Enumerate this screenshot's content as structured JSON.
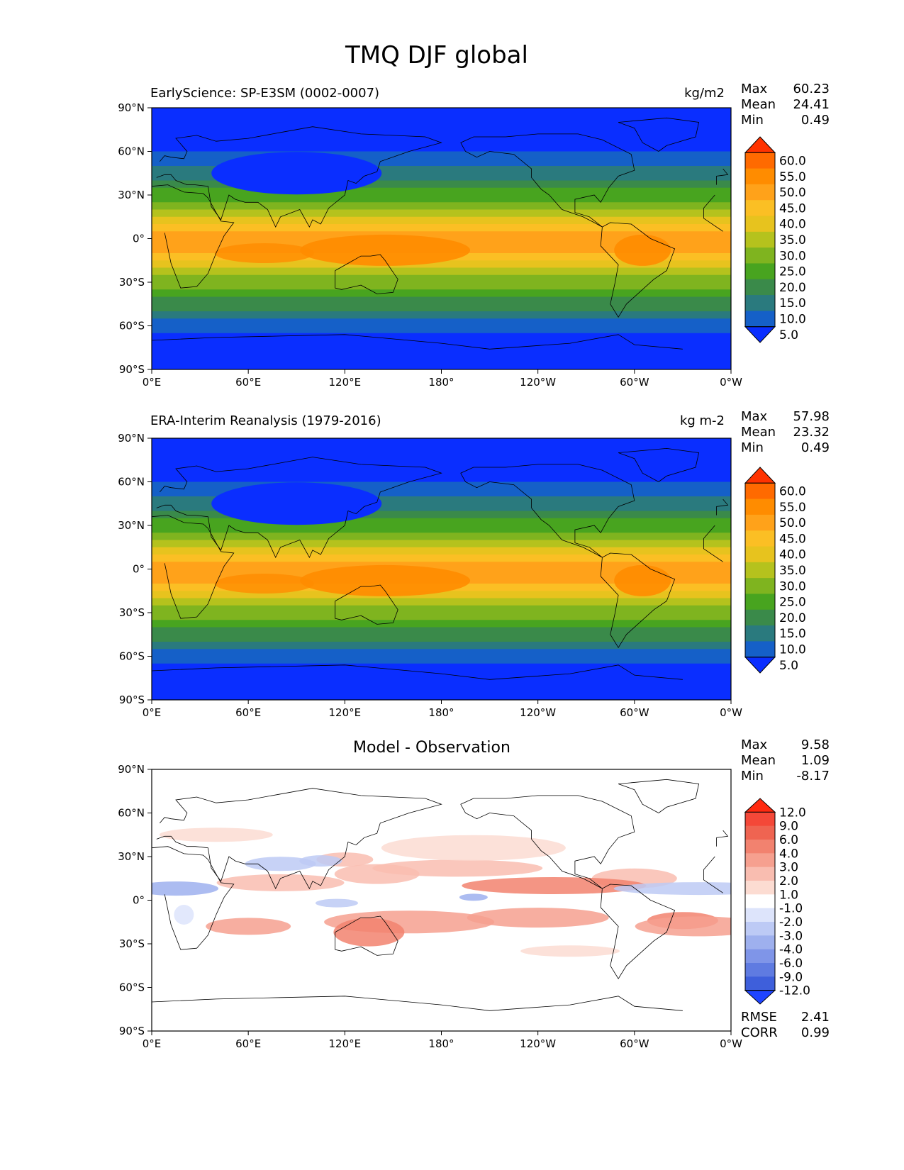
{
  "figure": {
    "title": "TMQ DJF global"
  },
  "axes": {
    "lat_ticks": [
      "90°N",
      "60°N",
      "30°N",
      "0°",
      "30°S",
      "60°S",
      "90°S"
    ],
    "lon_ticks": [
      "0°E",
      "60°E",
      "120°E",
      "180°",
      "120°W",
      "60°W",
      "0°W"
    ]
  },
  "panels": [
    {
      "left_title": "EarlyScience: SP-E3SM (0002-0007)",
      "center_title": "",
      "units": "kg/m2",
      "stats": [
        {
          "label": "Max",
          "value": "60.23"
        },
        {
          "label": "Mean",
          "value": "24.41"
        },
        {
          "label": "Min",
          "value": "0.49"
        }
      ],
      "colorbar_labels": [
        "60.0",
        "55.0",
        "50.0",
        "45.0",
        "40.0",
        "35.0",
        "30.0",
        "25.0",
        "20.0",
        "15.0",
        "10.0",
        "5.0"
      ],
      "colorbar_colors": [
        "#ff3300",
        "#ff6a00",
        "#ff8c00",
        "#ffa21a",
        "#fbbf24",
        "#e7c31e",
        "#b5c21d",
        "#7fb41f",
        "#48a41f",
        "#3a8a4a",
        "#2a7a7e",
        "#1560c8",
        "#0a2eff"
      ],
      "extra_stats": []
    },
    {
      "left_title": "ERA-Interim Reanalysis (1979-2016)",
      "center_title": "",
      "units": "kg m-2",
      "stats": [
        {
          "label": "Max",
          "value": "57.98"
        },
        {
          "label": "Mean",
          "value": "23.32"
        },
        {
          "label": "Min",
          "value": "0.49"
        }
      ],
      "colorbar_labels": [
        "60.0",
        "55.0",
        "50.0",
        "45.0",
        "40.0",
        "35.0",
        "30.0",
        "25.0",
        "20.0",
        "15.0",
        "10.0",
        "5.0"
      ],
      "colorbar_colors": [
        "#ff3300",
        "#ff6a00",
        "#ff8c00",
        "#ffa21a",
        "#fbbf24",
        "#e7c31e",
        "#b5c21d",
        "#7fb41f",
        "#48a41f",
        "#3a8a4a",
        "#2a7a7e",
        "#1560c8",
        "#0a2eff"
      ],
      "extra_stats": []
    },
    {
      "left_title": "",
      "center_title": "Model - Observation",
      "units": "",
      "stats": [
        {
          "label": "Max",
          "value": "9.58"
        },
        {
          "label": "Mean",
          "value": "1.09"
        },
        {
          "label": "Min",
          "value": "-8.17"
        }
      ],
      "colorbar_labels": [
        "12.0",
        "9.0",
        "6.0",
        "4.0",
        "3.0",
        "2.0",
        "1.0",
        "-1.0",
        "-2.0",
        "-3.0",
        "-4.0",
        "-6.0",
        "-9.0",
        "-12.0"
      ],
      "colorbar_colors": [
        "#ff2a10",
        "#f44838",
        "#ef6451",
        "#f2826f",
        "#f6a08f",
        "#f9bdb0",
        "#fcdcd2",
        "#ffffff",
        "#dde4fb",
        "#bdcaf5",
        "#9eb0ee",
        "#7f95e8",
        "#5f7be1",
        "#3e5fdb",
        "#1f44ff"
      ],
      "extra_stats": [
        {
          "label": "RMSE",
          "value": "2.41"
        },
        {
          "label": "CORR",
          "value": "0.99"
        }
      ]
    }
  ]
}
